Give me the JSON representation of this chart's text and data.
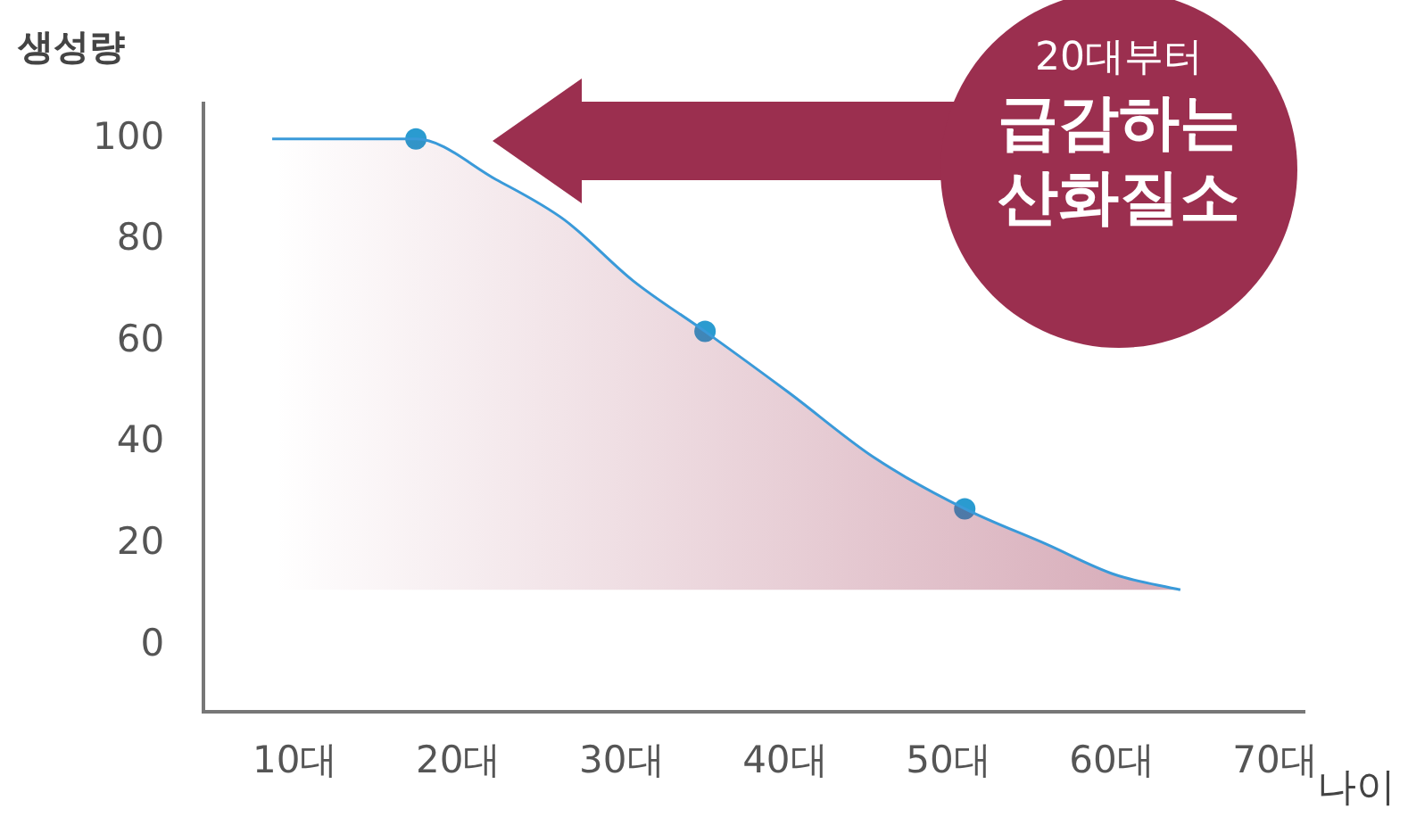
{
  "chart_data": {
    "type": "area",
    "xlabel": "나이",
    "ylabel": "생성량",
    "annotations": [
      "20대부터",
      "급감하는",
      "산화질소"
    ],
    "xlim": [
      4.4,
      71.8
    ],
    "ylim": [
      -13,
      107
    ],
    "xticks": [
      {
        "value": 10,
        "label": "10대"
      },
      {
        "value": 20,
        "label": "20대"
      },
      {
        "value": 30,
        "label": "30대"
      },
      {
        "value": 40,
        "label": "40대"
      },
      {
        "value": 50,
        "label": "50대"
      },
      {
        "value": 60,
        "label": "60대"
      },
      {
        "value": 70,
        "label": "70대"
      }
    ],
    "yticks": [
      0,
      20,
      40,
      60,
      80,
      100
    ],
    "grid": false,
    "legend": false,
    "series": [
      {
        "color": "#3a9ad9",
        "x": [
          8.6,
          17.4,
          22.3,
          26.5,
          30.7,
          35.1,
          40.2,
          45.5,
          51.0,
          56.0,
          60.2,
          64.2
        ],
        "values": [
          100,
          100,
          92,
          84,
          72,
          62,
          50,
          37,
          27,
          20,
          14,
          11
        ]
      },
      {
        "type": "scatter",
        "marker": "circle",
        "color": "#2a9bd0",
        "x": [
          17.4,
          35.1,
          51.0
        ],
        "values": [
          100,
          62,
          27
        ]
      }
    ]
  }
}
